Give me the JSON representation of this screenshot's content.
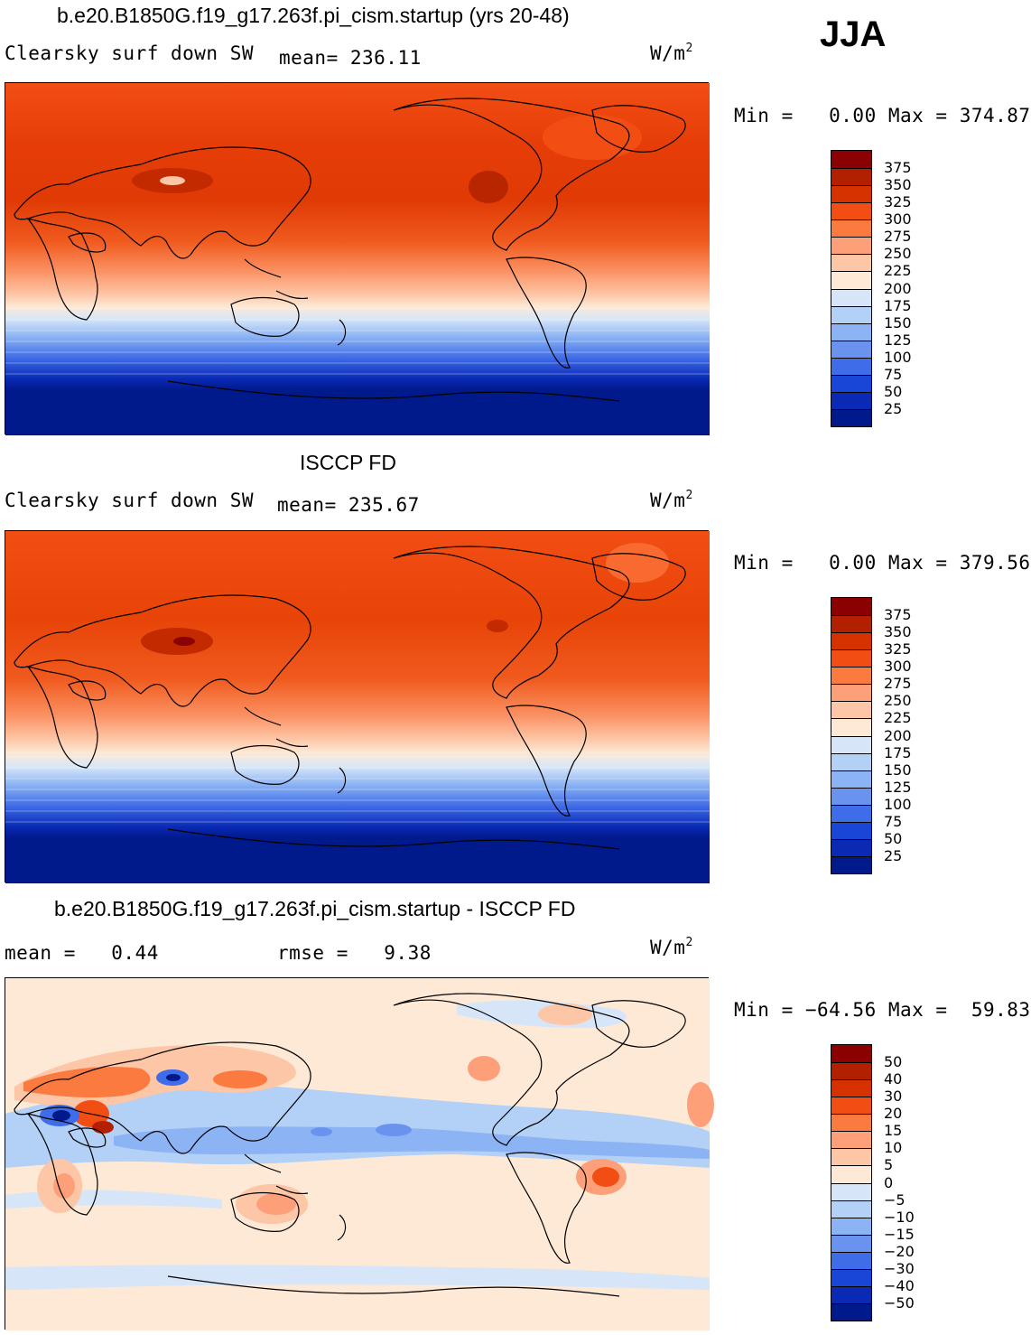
{
  "season": "JJA",
  "units": {
    "base": "W/m",
    "exp": "2"
  },
  "panels": [
    {
      "title": "b.e20.B1850G.f19_g17.263f.pi_cism.startup (yrs 20-48)",
      "variable": "Clearsky surf down SW",
      "mean_label": "mean=",
      "mean_value": "236.11",
      "range_text": "Min =   0.00 Max = 374.87"
    },
    {
      "title": "ISCCP FD",
      "variable": "Clearsky surf down SW",
      "mean_label": "mean=",
      "mean_value": "235.67",
      "range_text": "Min =   0.00 Max = 379.56"
    },
    {
      "title": "b.e20.B1850G.f19_g17.263f.pi_cism.startup - ISCCP FD",
      "mean_text": "mean =   0.44",
      "rmse_text": "rmse =   9.38",
      "range_text": "Min = −64.56 Max =  59.83"
    }
  ],
  "colorbar_abs": {
    "labels": [
      "375",
      "350",
      "325",
      "300",
      "275",
      "250",
      "225",
      "200",
      "175",
      "150",
      "125",
      "100",
      "75",
      "50",
      "25"
    ],
    "colors": [
      "#8b0000",
      "#b32000",
      "#d63200",
      "#f24e14",
      "#fa7a40",
      "#fda07a",
      "#fdc6a6",
      "#fde9d6",
      "#d6e6f8",
      "#b3d0f6",
      "#8cb3f3",
      "#6a93ef",
      "#3f6ce8",
      "#1a46d8",
      "#0a29b4",
      "#001a8c"
    ]
  },
  "colorbar_diff": {
    "labels": [
      "50",
      "40",
      "30",
      "20",
      "15",
      "10",
      "5",
      "0",
      "−5",
      "−10",
      "−15",
      "−20",
      "−30",
      "−40",
      "−50"
    ],
    "colors": [
      "#8b0000",
      "#b32000",
      "#d63200",
      "#f24e14",
      "#fa7a40",
      "#fda07a",
      "#fdc6a6",
      "#fde9d6",
      "#d6e6f8",
      "#b3d0f6",
      "#8cb3f3",
      "#6a93ef",
      "#3f6ce8",
      "#1a46d8",
      "#0a29b4",
      "#001a8c"
    ]
  }
}
